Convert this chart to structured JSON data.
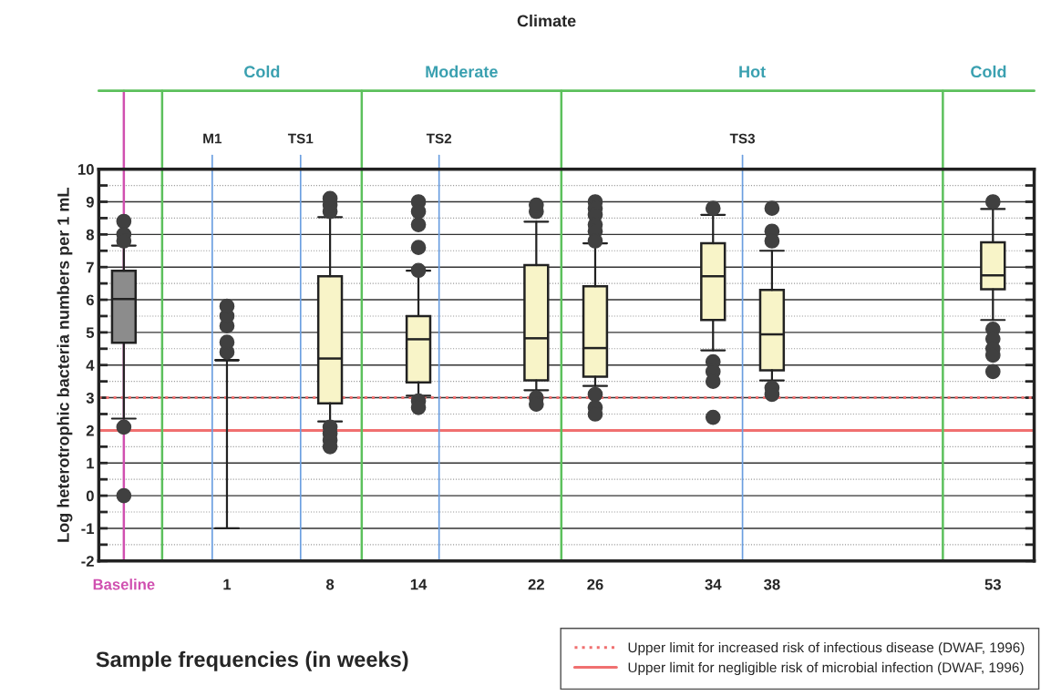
{
  "chart_data": {
    "type": "box",
    "title": "Climate",
    "xlabel": "Sample frequencies (in weeks)",
    "ylabel": "Log heterotrophic bacteria numbers per 1 mL",
    "x": [
      -6,
      1,
      8,
      14,
      22,
      26,
      34,
      38,
      53
    ],
    "boxes": [
      {
        "low": 2.36,
        "q1": 4.68,
        "median": 6.02,
        "q3": 6.89,
        "high": 7.66,
        "outliers": [
          8.4,
          8.0,
          7.8,
          2.1,
          0.0
        ]
      },
      {
        "low": -1.0,
        "q1": 4.15,
        "median": 4.15,
        "q3": 4.15,
        "high": 4.15,
        "outliers": [
          4.4,
          4.7,
          5.2,
          5.5,
          5.8
        ]
      },
      {
        "low": 2.27,
        "q1": 2.83,
        "median": 4.2,
        "q3": 6.72,
        "high": 8.53,
        "outliers": [
          8.7,
          8.9,
          9.1,
          2.1,
          1.9,
          1.7,
          1.5
        ]
      },
      {
        "low": 3.06,
        "q1": 3.47,
        "median": 4.79,
        "q3": 5.5,
        "high": 6.89,
        "outliers": [
          9.0,
          8.7,
          8.3,
          7.6,
          6.9,
          2.9,
          2.7
        ]
      },
      {
        "low": 3.23,
        "q1": 3.53,
        "median": 4.82,
        "q3": 7.06,
        "high": 8.39,
        "outliers": [
          8.7,
          8.9,
          3.0,
          2.8
        ]
      },
      {
        "low": 3.36,
        "q1": 3.64,
        "median": 4.52,
        "q3": 6.41,
        "high": 7.73,
        "outliers": [
          9.0,
          8.8,
          8.6,
          8.3,
          8.1,
          7.8,
          3.1,
          2.7,
          2.5
        ]
      },
      {
        "low": 4.45,
        "q1": 5.38,
        "median": 6.72,
        "q3": 7.73,
        "high": 8.6,
        "outliers": [
          8.8,
          4.1,
          3.8,
          3.5,
          2.4
        ]
      },
      {
        "low": 3.53,
        "q1": 3.84,
        "median": 4.94,
        "q3": 6.3,
        "high": 7.5,
        "outliers": [
          8.8,
          8.1,
          7.8,
          3.3,
          3.1
        ]
      },
      {
        "low": 5.38,
        "q1": 6.32,
        "median": 6.75,
        "q3": 7.76,
        "high": 8.78,
        "outliers": [
          9.0,
          5.1,
          4.8,
          4.5,
          4.3,
          3.8
        ]
      }
    ],
    "colors": [
      "#8c8c8c",
      null,
      "#f8f4c8",
      "#f8f4c8",
      "#f8f4c8",
      "#f8f4c8",
      "#f8f4c8",
      "#f8f4c8",
      "#f8f4c8"
    ],
    "xlim": [
      -7.7,
      55.8
    ],
    "xticks": [
      {
        "value": -6,
        "label": "Baseline"
      },
      1,
      8,
      14,
      22,
      26,
      34,
      38,
      53
    ],
    "ylim": [
      -2,
      10
    ],
    "yticks": [
      -2,
      {
        "value": -1.5,
        "label": null
      },
      -1,
      {
        "value": -0.5,
        "label": null
      },
      0,
      {
        "value": 0.5,
        "label": null
      },
      1,
      {
        "value": 1.5,
        "label": null
      },
      2,
      {
        "value": 2.5,
        "label": null
      },
      3,
      {
        "value": 3.5,
        "label": null
      },
      4,
      {
        "value": 4.5,
        "label": null
      },
      5,
      {
        "value": 5.5,
        "label": null
      },
      6,
      {
        "value": 6.5,
        "label": null
      },
      7,
      {
        "value": 7.5,
        "label": null
      },
      8,
      {
        "value": 8.5,
        "label": null
      },
      9,
      {
        "value": 9.5,
        "label": null
      },
      10
    ],
    "grid": "y",
    "marker": "circle",
    "ref_lines": [
      {
        "axis": "y",
        "value": 3,
        "label": "Upper limit for increased risk of infectious disease (DWAF, 1996)",
        "color": "#f07070",
        "line_style": "dotted"
      },
      {
        "axis": "y",
        "value": 2,
        "label": "Upper limit for negligible risk of microbial infection (DWAF, 1996)",
        "color": "#f07070",
        "line_style": "solid"
      },
      {
        "axis": "x",
        "value": -6,
        "color": "#d050b0",
        "line_style": "solid"
      },
      {
        "axis": "x",
        "value": -3.4,
        "color": "#5cc05c",
        "line_style": "solid"
      },
      {
        "axis": "x",
        "value": 10.15,
        "color": "#5cc05c",
        "line_style": "solid"
      },
      {
        "axis": "x",
        "value": 23.7,
        "color": "#5cc05c",
        "line_style": "solid"
      },
      {
        "axis": "x",
        "value": 49.6,
        "color": "#5cc05c",
        "line_style": "solid"
      },
      {
        "axis": "x",
        "value": 0,
        "label": "M1",
        "color": "#6a9ee0",
        "line_style": "solid"
      },
      {
        "axis": "x",
        "value": 6,
        "label": "TS1",
        "color": "#6a9ee0",
        "line_style": "solid"
      },
      {
        "axis": "x",
        "value": 15.4,
        "label": "TS2",
        "color": "#6a9ee0",
        "line_style": "solid"
      },
      {
        "axis": "x",
        "value": 36,
        "label": "TS3",
        "color": "#6a9ee0",
        "line_style": "solid"
      }
    ],
    "annotations": [
      "Cold",
      "Moderate",
      "Hot",
      "Cold"
    ],
    "legend": "bottom right"
  }
}
